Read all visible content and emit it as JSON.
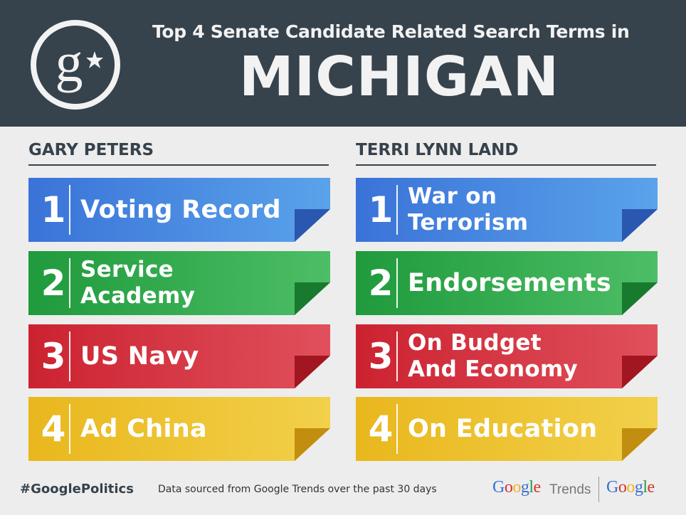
{
  "header": {
    "title_line1": "Top 4 Senate Candidate Related Search Terms in",
    "title_line2": "MICHIGAN",
    "logo_icon": "google-plus-logo-icon",
    "bg_color": "#36424c"
  },
  "columns": [
    {
      "candidate": "GARY PETERS",
      "items": [
        {
          "rank": "1",
          "term": "Voting Record",
          "color": "blue"
        },
        {
          "rank": "2",
          "term": "Service\nAcademy",
          "color": "green"
        },
        {
          "rank": "3",
          "term": "US Navy",
          "color": "red"
        },
        {
          "rank": "4",
          "term": "Ad China",
          "color": "yellow"
        }
      ]
    },
    {
      "candidate": "TERRI LYNN LAND",
      "items": [
        {
          "rank": "1",
          "term": "War on\nTerrorism",
          "color": "blue"
        },
        {
          "rank": "2",
          "term": "Endorsements",
          "color": "green"
        },
        {
          "rank": "3",
          "term": "On Budget\nAnd Economy",
          "color": "red"
        },
        {
          "rank": "4",
          "term": "On Education",
          "color": "yellow"
        }
      ]
    }
  ],
  "palette": {
    "blue": {
      "light": "#5aa3ea",
      "dark": "#3a73d8",
      "fold": "#2a57b0"
    },
    "green": {
      "light": "#4dbe66",
      "dark": "#1f9a3c",
      "fold": "#177a2e"
    },
    "red": {
      "light": "#e0505c",
      "dark": "#cc2230",
      "fold": "#a11621"
    },
    "yellow": {
      "light": "#f2d04a",
      "dark": "#e9b71d",
      "fold": "#c28e0f"
    }
  },
  "footer": {
    "hashtag": "#GooglePolitics",
    "source": "Data sourced from Google Trends over the past 30 days",
    "brand_trends_google": "Google",
    "brand_trends_word": "Trends",
    "brand_google": "Google",
    "google_letter_colors": [
      "#3b6fd6",
      "#d8332b",
      "#f1b31c",
      "#3b6fd6",
      "#2a9d45",
      "#d8332b"
    ]
  }
}
